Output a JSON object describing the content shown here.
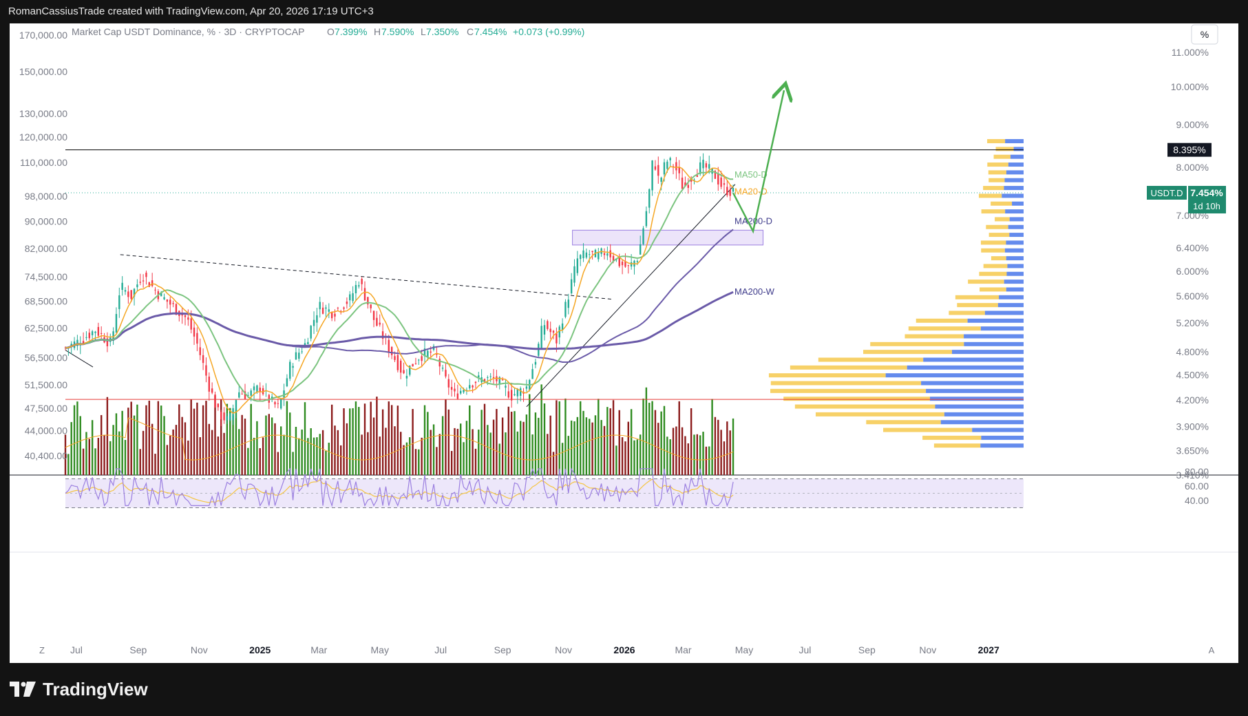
{
  "header": {
    "credit": "RomanCassiusTrade created with TradingView.com, Apr 20, 2026 17:19 UTC+3"
  },
  "legend": {
    "name": "Market Cap USDT Dominance, % · 3D · CRYPTOCAP",
    "o_label": "O",
    "o": "7.399%",
    "h_label": "H",
    "h": "7.590%",
    "l_label": "L",
    "l": "7.350%",
    "c_label": "C",
    "c": "7.454%",
    "change": "+0.073 (+0.99%)"
  },
  "scale_button": "%",
  "corner_left": "Z",
  "corner_right": "A",
  "brand": {
    "name": "TradingView",
    "icon": "tradingview-logo"
  },
  "colors": {
    "up": "#22ab94",
    "down": "#f23645",
    "vol_up": "#2e8b1f",
    "vol_down": "#8b1a1a",
    "ma20": "#f5a623",
    "ma50": "#7bc47f",
    "ma200": "#6a5aa8",
    "arrow": "#4caf50",
    "rsi": "#9b7fe0",
    "support": "#e53935",
    "badge": "#1f8a6e"
  },
  "chart_data": {
    "type": "candlestick",
    "symbol": "USDT.D",
    "timeframe": "3D",
    "left_axis_ticks": [
      "170,000.00",
      "150,000.00",
      "130,000.00",
      "120,000.00",
      "110,000.00",
      "98,000.00",
      "90,000.00",
      "82,000.00",
      "74,500.00",
      "68,500.00",
      "62,500.00",
      "56,500.00",
      "51,500.00",
      "47,500.00",
      "44,000.00",
      "40,400.00"
    ],
    "right_axis_ticks": [
      "11.000%",
      "10.000%",
      "9.000%",
      "8.000%",
      "7.000%",
      "6.400%",
      "6.000%",
      "5.600%",
      "5.200%",
      "4.800%",
      "4.500%",
      "4.200%",
      "3.900%",
      "3.650%",
      "3.410%"
    ],
    "x_axis_labels": [
      "Jul",
      "Sep",
      "Nov",
      "2025",
      "Mar",
      "May",
      "Jul",
      "Sep",
      "Nov",
      "2026",
      "Mar",
      "May",
      "Jul",
      "Sep",
      "Nov",
      "2027"
    ],
    "bold_x_labels": [
      "2025",
      "2026",
      "2027"
    ],
    "price_path": [
      [
        "2024-06-20",
        4.85
      ],
      [
        "2024-07-05",
        4.95
      ],
      [
        "2024-07-20",
        5.1
      ],
      [
        "2024-08-05",
        4.9
      ],
      [
        "2024-08-14",
        5.75
      ],
      [
        "2024-08-25",
        5.6
      ],
      [
        "2024-09-05",
        5.95
      ],
      [
        "2024-09-20",
        5.65
      ],
      [
        "2024-10-05",
        5.45
      ],
      [
        "2024-10-20",
        5.25
      ],
      [
        "2024-10-30",
        4.9
      ],
      [
        "2024-11-10",
        4.4
      ],
      [
        "2024-11-20",
        4.05
      ],
      [
        "2024-12-01",
        3.95
      ],
      [
        "2024-12-10",
        4.3
      ],
      [
        "2024-12-20",
        4.25
      ],
      [
        "2025-01-01",
        4.35
      ],
      [
        "2025-01-10",
        4.2
      ],
      [
        "2025-01-20",
        4.1
      ],
      [
        "2025-02-01",
        4.65
      ],
      [
        "2025-02-15",
        4.9
      ],
      [
        "2025-03-01",
        5.45
      ],
      [
        "2025-03-15",
        5.35
      ],
      [
        "2025-04-01",
        5.55
      ],
      [
        "2025-04-10",
        5.85
      ],
      [
        "2025-04-25",
        5.25
      ],
      [
        "2025-05-10",
        4.85
      ],
      [
        "2025-05-25",
        4.5
      ],
      [
        "2025-06-10",
        4.75
      ],
      [
        "2025-06-25",
        4.8
      ],
      [
        "2025-07-05",
        4.45
      ],
      [
        "2025-07-15",
        4.25
      ],
      [
        "2025-07-30",
        4.4
      ],
      [
        "2025-08-10",
        4.45
      ],
      [
        "2025-08-25",
        4.45
      ],
      [
        "2025-09-10",
        4.25
      ],
      [
        "2025-09-25",
        4.35
      ],
      [
        "2025-10-05",
        4.75
      ],
      [
        "2025-10-12",
        5.2
      ],
      [
        "2025-10-25",
        4.95
      ],
      [
        "2025-11-05",
        5.55
      ],
      [
        "2025-11-15",
        6.2
      ],
      [
        "2025-11-25",
        6.3
      ],
      [
        "2025-12-05",
        6.25
      ],
      [
        "2025-12-15",
        6.35
      ],
      [
        "2025-12-25",
        6.15
      ],
      [
        "2026-01-05",
        6.05
      ],
      [
        "2026-01-15",
        6.25
      ],
      [
        "2026-01-25",
        7.3
      ],
      [
        "2026-01-30",
        8.25
      ],
      [
        "2026-02-05",
        7.65
      ],
      [
        "2026-02-12",
        8.15
      ],
      [
        "2026-02-20",
        8.05
      ],
      [
        "2026-03-01",
        7.55
      ],
      [
        "2026-03-10",
        7.8
      ],
      [
        "2026-03-20",
        8.05
      ],
      [
        "2026-04-01",
        7.85
      ],
      [
        "2026-04-10",
        7.55
      ],
      [
        "2026-04-20",
        7.454
      ]
    ],
    "moving_averages": [
      {
        "name": "MA50-D",
        "color": "#7bc47f"
      },
      {
        "name": "MA20-D",
        "color": "#f5a623"
      },
      {
        "name": "MA200-D",
        "color": "#6a5aa8"
      },
      {
        "name": "MA200-W",
        "color": "#6a5aa8"
      }
    ],
    "horizontal_lines": [
      {
        "value": 8.395,
        "color": "#000000"
      },
      {
        "value": 4.205,
        "color": "#e53935"
      }
    ],
    "current_price": {
      "label": "USDT.D",
      "value": "7.454%",
      "countdown": "1d 10h"
    },
    "resistance_label": "8.395%",
    "zone": {
      "from": "2025-11-10",
      "to": "2026-05-20",
      "low": 6.45,
      "high": 6.72
    },
    "projection": [
      [
        "2026-04-20",
        7.45
      ],
      [
        "2026-05-10",
        6.7
      ],
      [
        "2026-06-10",
        9.9
      ]
    ],
    "volume_profile": {
      "levels": 40
    },
    "rsi": {
      "upper": 70,
      "lower": 30,
      "ticks": [
        "80.00",
        "60.00",
        "40.00"
      ],
      "last": 50
    }
  }
}
